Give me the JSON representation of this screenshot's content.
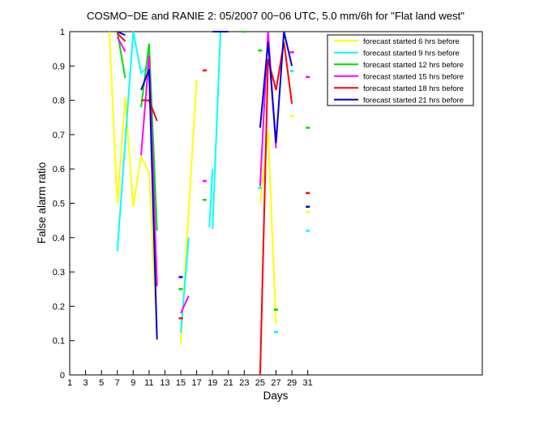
{
  "figure": {
    "title": "COSMO−DE and RANIE 2: 05/2007 00−06 UTC, 5.0 mm/6h for \"Flat land west\"",
    "xlabel": "Days",
    "ylabel": "False alarm ratio"
  },
  "legend": {
    "entries": [
      {
        "label": "forecast started 6 hrs before",
        "color": "#FFFF00"
      },
      {
        "label": "forecast started 9 hrs before",
        "color": "#00FFFF"
      },
      {
        "label": "forecast started 12 hrs before",
        "color": "#00DD00"
      },
      {
        "label": "forecast started 15 hrs before",
        "color": "#FF00FF"
      },
      {
        "label": "forecast started 18 hrs before",
        "color": "#FF0000"
      },
      {
        "label": "forecast started 21 hrs before",
        "color": "#0000D9"
      }
    ]
  },
  "chart_data": {
    "type": "line",
    "title": "COSMO−DE and RANIE 2: 05/2007 00−06 UTC, 5.0 mm/6h for \"Flat land west\"",
    "xlabel": "Days",
    "ylabel": "False alarm ratio",
    "xlim": [
      1,
      53
    ],
    "ylim": [
      0,
      1
    ],
    "grid": false,
    "legend_position": "upper-right-inside",
    "xticks": [
      1,
      3,
      5,
      7,
      9,
      11,
      13,
      15,
      17,
      19,
      21,
      23,
      25,
      27,
      29,
      31
    ],
    "xtick_labels": [
      "1",
      "3",
      "5",
      "7",
      "9",
      "11",
      "13",
      "15",
      "17",
      "19",
      "21",
      "23",
      "25",
      "27",
      "29",
      "31"
    ],
    "yticks": [
      0,
      0.1,
      0.2,
      0.3,
      0.4,
      0.5,
      0.6,
      0.7,
      0.8,
      0.9,
      1
    ],
    "ytick_labels": [
      "0",
      "0.1",
      "0.2",
      "0.3",
      "0.4",
      "0.5",
      "0.6",
      "0.7",
      "0.8",
      "0.9",
      "1"
    ],
    "series": [
      {
        "name": "forecast started 6 hrs before",
        "color": "#FFFF00",
        "segments": [
          [
            [
              6,
              1.0
            ],
            [
              7,
              0.5
            ],
            [
              8,
              0.81
            ],
            [
              9,
              0.49
            ],
            [
              10,
              0.635
            ],
            [
              11,
              0.59
            ],
            [
              12,
              0.107
            ]
          ],
          [
            [
              15,
              0.09
            ],
            [
              16,
              0.48
            ],
            [
              17,
              0.86
            ]
          ],
          [
            [
              25,
              0.5
            ],
            [
              26,
              0.71
            ],
            [
              27,
              0.147
            ]
          ]
        ],
        "points": [
          [
            29,
            0.755
          ],
          [
            31,
            0.475
          ]
        ]
      },
      {
        "name": "forecast started 9 hrs before",
        "color": "#00FFFF",
        "segments": [
          [
            [
              7,
              0.36
            ],
            [
              8,
              0.68
            ],
            [
              9,
              1.0
            ],
            [
              10,
              0.88
            ],
            [
              11,
              0.9
            ],
            [
              12,
              0.257
            ]
          ],
          [
            [
              15,
              0.123
            ],
            [
              16,
              0.4
            ]
          ],
          [
            [
              18.6,
              0.43
            ],
            [
              19,
              0.6
            ]
          ],
          [
            [
              19,
              0.425
            ],
            [
              20,
              1.0
            ]
          ]
        ],
        "points": [
          [
            25,
            0.545
          ],
          [
            27,
            0.125
          ],
          [
            29,
            0.885
          ],
          [
            31,
            0.42
          ]
        ]
      },
      {
        "name": "forecast started 12 hrs before",
        "color": "#00DD00",
        "segments": [
          [
            [
              7,
              1.0
            ],
            [
              8,
              0.865
            ]
          ],
          [
            [
              10,
              0.78
            ],
            [
              11,
              0.965
            ],
            [
              12,
              0.42
            ]
          ]
        ],
        "points": [
          [
            15,
            0.25
          ],
          [
            18,
            0.51
          ],
          [
            23,
            1.0
          ],
          [
            25,
            0.945
          ],
          [
            27,
            0.19
          ],
          [
            31,
            0.72
          ]
        ]
      },
      {
        "name": "forecast started 15 hrs before",
        "color": "#FF00FF",
        "segments": [
          [
            [
              7,
              0.985
            ],
            [
              8,
              0.942
            ]
          ],
          [
            [
              10,
              0.64
            ],
            [
              11,
              0.93
            ],
            [
              12,
              0.26
            ]
          ],
          [
            [
              15,
              0.18
            ],
            [
              16,
              0.23
            ]
          ],
          [
            [
              25,
              0.55
            ],
            [
              26,
              1.0
            ],
            [
              27,
              0.66
            ]
          ]
        ],
        "points": [
          [
            18,
            0.565
          ],
          [
            29,
            0.94
          ],
          [
            31,
            0.868
          ]
        ]
      },
      {
        "name": "forecast started 18 hrs before",
        "color": "#FF0000",
        "segments": [
          [
            [
              7,
              0.995
            ],
            [
              8,
              0.972
            ]
          ],
          [
            [
              10,
              0.8
            ],
            [
              11,
              0.8
            ],
            [
              12,
              0.74
            ]
          ],
          [
            [
              25,
              0.0
            ],
            [
              26,
              0.92
            ],
            [
              27,
              0.83
            ],
            [
              28,
              0.97
            ],
            [
              29,
              0.79
            ]
          ]
        ],
        "points": [
          [
            15,
            0.165
          ],
          [
            18,
            0.887
          ],
          [
            31,
            0.53
          ]
        ]
      },
      {
        "name": "forecast started 21 hrs before",
        "color": "#0000D9",
        "segments": [
          [
            [
              7,
              1.0
            ],
            [
              8,
              0.99
            ]
          ],
          [
            [
              10,
              0.83
            ],
            [
              11,
              0.89
            ],
            [
              12,
              0.103
            ]
          ],
          [
            [
              19,
              1.0
            ],
            [
              20,
              1.0
            ],
            [
              21,
              1.0
            ]
          ],
          [
            [
              25,
              0.72
            ],
            [
              26,
              0.97
            ],
            [
              27,
              0.675
            ],
            [
              28,
              1.0
            ],
            [
              29,
              0.9
            ]
          ]
        ],
        "points": [
          [
            15,
            0.285
          ],
          [
            31,
            0.49
          ]
        ]
      }
    ]
  }
}
